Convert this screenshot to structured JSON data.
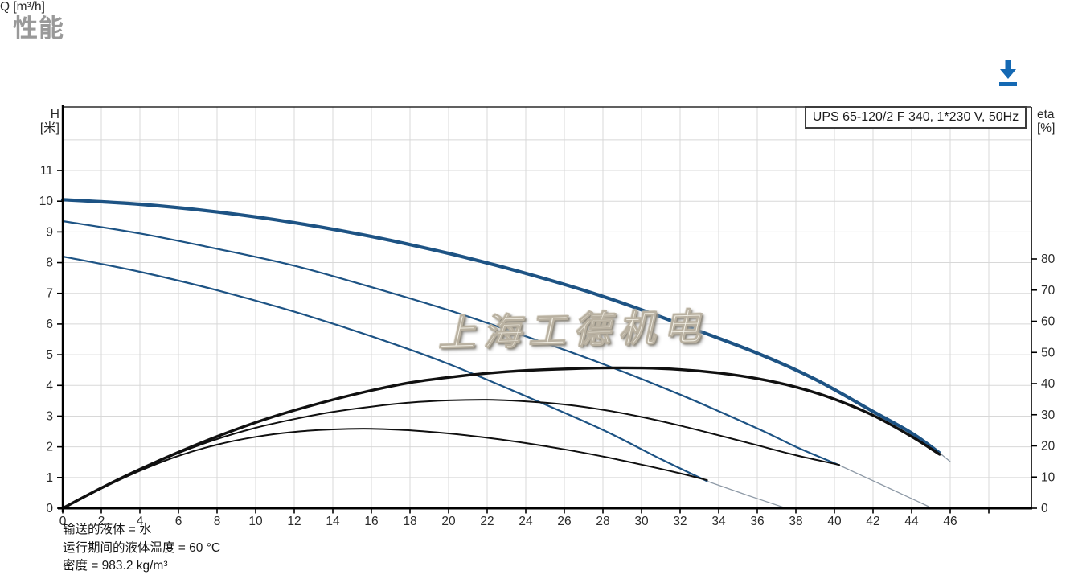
{
  "page": {
    "title": "性能"
  },
  "toolbar": {
    "download_icon": "download-icon",
    "download_color": "#1569b3"
  },
  "watermark": {
    "text": "上海工德机电"
  },
  "footer": {
    "lines": [
      "输送的液体 = 水",
      "运行期间的液体温度 = 60 °C",
      "密度 = 983.2 kg/m³"
    ]
  },
  "chart_data": {
    "type": "line",
    "legend": "UPS 65-120/2 F 340, 1*230 V, 50Hz",
    "grid": true,
    "x_axis": {
      "label": "Q [m³/h]",
      "min": 0,
      "max": 50.2,
      "tick_step": 2,
      "last_labeled_tick": 46
    },
    "y_left": {
      "label": "H",
      "unit": "[米]",
      "min": 0,
      "max": 13.07,
      "tick_step": 1,
      "last_labeled_tick": 11
    },
    "y_right": {
      "label": "eta",
      "unit": "[%]",
      "min": 0,
      "max": 80,
      "tick_step": 10,
      "last_labeled_tick": 80
    },
    "colors": {
      "curve_blue": "#1d5384",
      "curve_black": "#101010",
      "extension_gray": "#8d99a6",
      "grid": "#d8d8d8",
      "axis": "#000000",
      "tick_text": "#2a2a2a"
    },
    "series": [
      {
        "name": "speed3-head-curve",
        "axis": "H",
        "color_key": "curve_blue",
        "width": 4.2,
        "points": [
          [
            0,
            10.05
          ],
          [
            4,
            9.9
          ],
          [
            8,
            9.65
          ],
          [
            12,
            9.3
          ],
          [
            16,
            8.85
          ],
          [
            20,
            8.3
          ],
          [
            24,
            7.65
          ],
          [
            28,
            6.9
          ],
          [
            32,
            6.0
          ],
          [
            36,
            5.05
          ],
          [
            39,
            4.2
          ],
          [
            42,
            3.15
          ],
          [
            44,
            2.45
          ],
          [
            45.45,
            1.8
          ]
        ]
      },
      {
        "name": "speed3-head-extension",
        "axis": "H",
        "color_key": "extension_gray",
        "width": 1.3,
        "points": [
          [
            45.45,
            1.8
          ],
          [
            46.0,
            1.52
          ]
        ]
      },
      {
        "name": "speed2-head-curve",
        "axis": "H",
        "color_key": "curve_blue",
        "width": 2.2,
        "points": [
          [
            0,
            9.35
          ],
          [
            4,
            8.95
          ],
          [
            8,
            8.45
          ],
          [
            12,
            7.9
          ],
          [
            16,
            7.2
          ],
          [
            20,
            6.45
          ],
          [
            24,
            5.6
          ],
          [
            28,
            4.7
          ],
          [
            32,
            3.7
          ],
          [
            36,
            2.6
          ],
          [
            38,
            2.0
          ],
          [
            40.25,
            1.4
          ]
        ]
      },
      {
        "name": "speed2-head-extension",
        "axis": "H",
        "color_key": "extension_gray",
        "width": 1.3,
        "points": [
          [
            40.25,
            1.4
          ],
          [
            42.6,
            0.72
          ],
          [
            44.9,
            0.05
          ]
        ]
      },
      {
        "name": "speed1-head-curve",
        "axis": "H",
        "color_key": "curve_blue",
        "width": 2.2,
        "points": [
          [
            0,
            8.2
          ],
          [
            4,
            7.7
          ],
          [
            8,
            7.1
          ],
          [
            12,
            6.4
          ],
          [
            16,
            5.6
          ],
          [
            20,
            4.7
          ],
          [
            24,
            3.65
          ],
          [
            28,
            2.55
          ],
          [
            31,
            1.6
          ],
          [
            33.4,
            0.88
          ]
        ]
      },
      {
        "name": "speed1-head-extension",
        "axis": "H",
        "color_key": "extension_gray",
        "width": 1.3,
        "points": [
          [
            33.4,
            0.88
          ],
          [
            35.5,
            0.42
          ],
          [
            37.4,
            0.02
          ]
        ]
      },
      {
        "name": "speed3-eta-curve",
        "axis": "eta",
        "color_key": "curve_black",
        "width": 3.4,
        "points": [
          [
            0,
            0
          ],
          [
            2,
            6.5
          ],
          [
            4,
            12.5
          ],
          [
            6,
            18
          ],
          [
            8,
            23
          ],
          [
            10,
            27.5
          ],
          [
            12,
            31.4
          ],
          [
            14,
            34.8
          ],
          [
            16,
            37.8
          ],
          [
            18,
            40.3
          ],
          [
            20,
            42
          ],
          [
            22,
            43.3
          ],
          [
            24,
            44.2
          ],
          [
            26,
            44.7
          ],
          [
            28,
            45
          ],
          [
            30,
            45
          ],
          [
            32,
            44.5
          ],
          [
            34,
            43.4
          ],
          [
            36,
            41.6
          ],
          [
            38,
            38.9
          ],
          [
            40,
            35
          ],
          [
            42,
            29.8
          ],
          [
            44,
            23
          ],
          [
            45.45,
            17.3
          ]
        ]
      },
      {
        "name": "speed2-eta-curve",
        "axis": "eta",
        "color_key": "curve_black",
        "width": 2,
        "points": [
          [
            0,
            0
          ],
          [
            2,
            6.4
          ],
          [
            4,
            12.3
          ],
          [
            6,
            17.7
          ],
          [
            8,
            22.2
          ],
          [
            10,
            25.8
          ],
          [
            12,
            28.6
          ],
          [
            14,
            30.9
          ],
          [
            16,
            32.6
          ],
          [
            18,
            33.9
          ],
          [
            20,
            34.6
          ],
          [
            22,
            34.8
          ],
          [
            24,
            34.3
          ],
          [
            26,
            33.3
          ],
          [
            28,
            31.6
          ],
          [
            30,
            29.3
          ],
          [
            32,
            26.5
          ],
          [
            34,
            23.4
          ],
          [
            36,
            20.2
          ],
          [
            38,
            17
          ],
          [
            40.25,
            13.9
          ]
        ]
      },
      {
        "name": "speed1-eta-curve",
        "axis": "eta",
        "color_key": "curve_black",
        "width": 2,
        "points": [
          [
            0,
            0
          ],
          [
            2,
            6.3
          ],
          [
            4,
            12
          ],
          [
            6,
            16.8
          ],
          [
            8,
            20.4
          ],
          [
            10,
            22.9
          ],
          [
            12,
            24.5
          ],
          [
            14,
            25.3
          ],
          [
            16,
            25.5
          ],
          [
            18,
            25
          ],
          [
            20,
            24
          ],
          [
            22,
            22.6
          ],
          [
            24,
            20.9
          ],
          [
            26,
            18.9
          ],
          [
            28,
            16.6
          ],
          [
            30,
            14
          ],
          [
            32,
            11.2
          ],
          [
            33.4,
            9
          ]
        ]
      }
    ]
  }
}
